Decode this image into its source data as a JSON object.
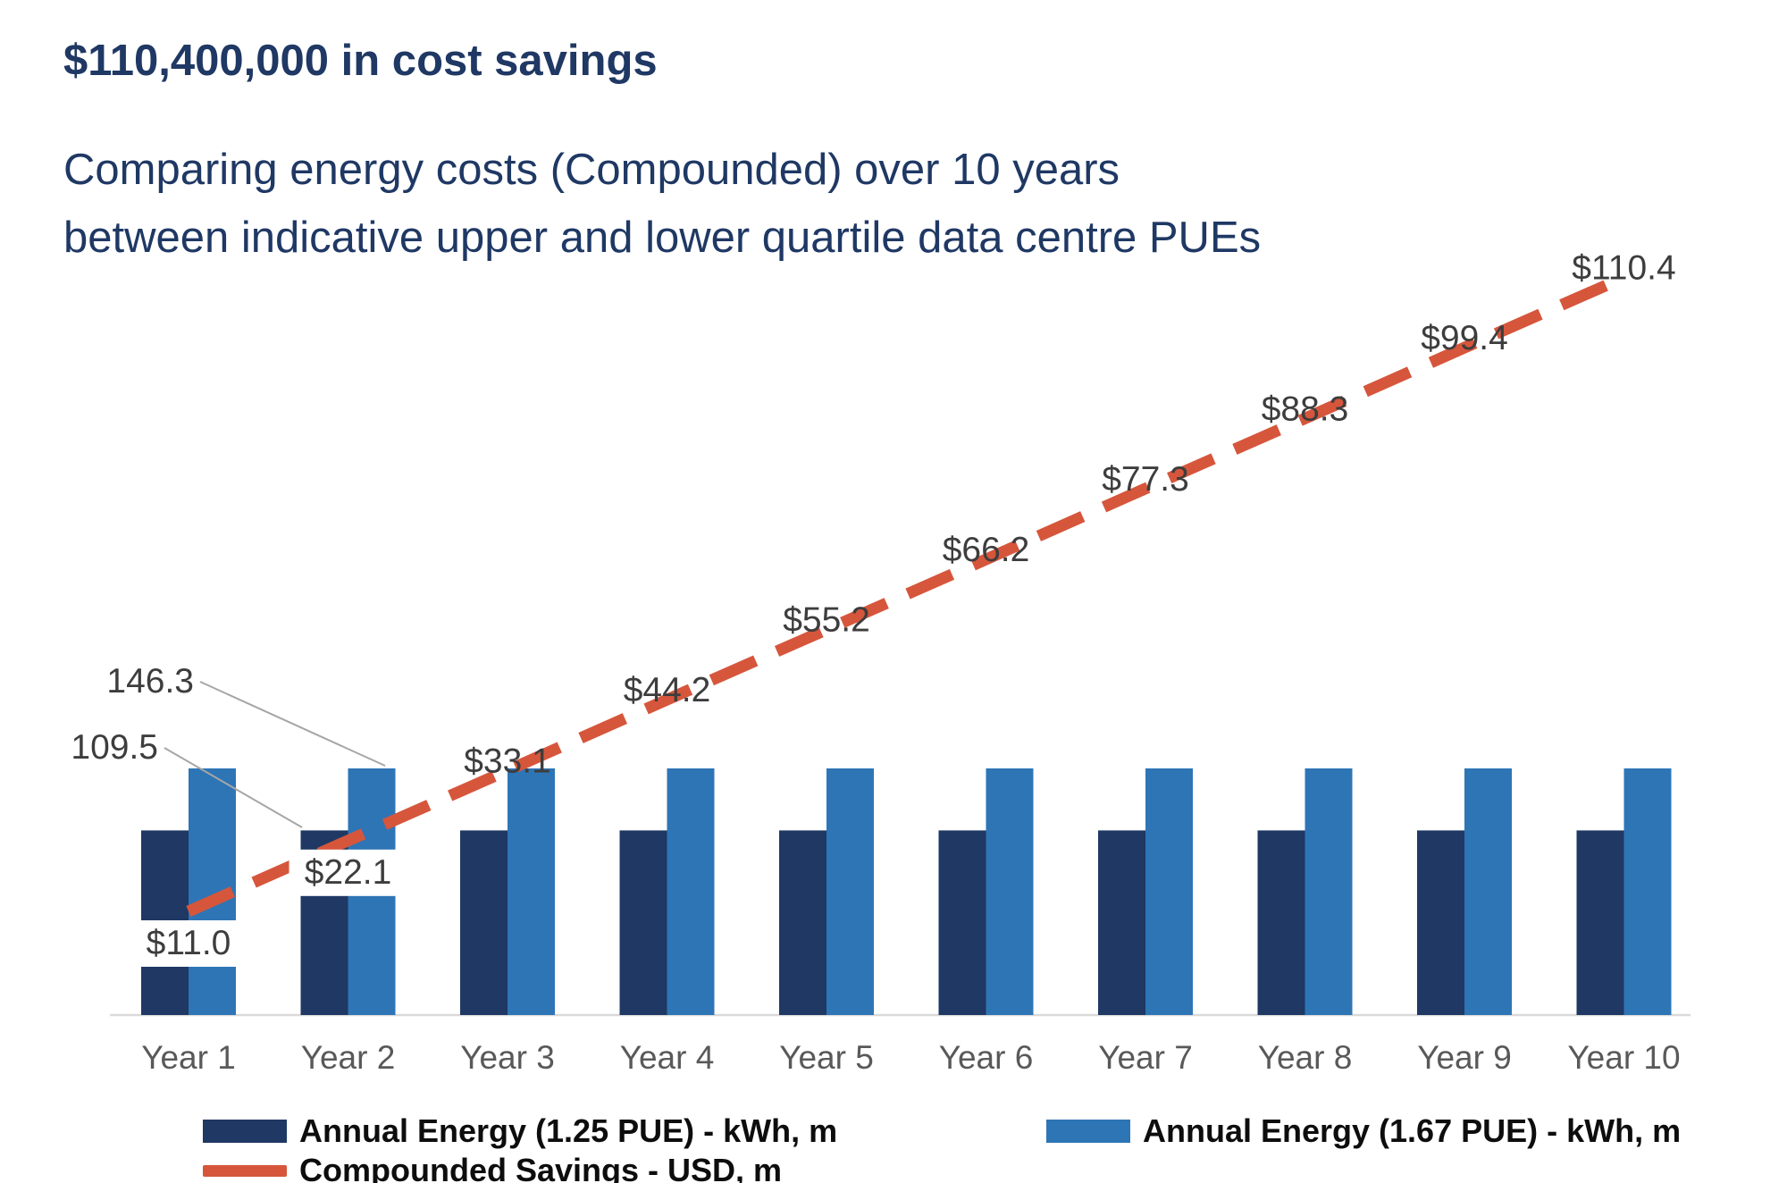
{
  "header": {
    "title": "$110,400,000 in cost savings",
    "subtitle_lines": [
      "Comparing energy costs (Compounded) over 10 years",
      "between indicative upper and lower quartile data centre PUEs"
    ]
  },
  "chart_data": {
    "type": "combo-bar-line",
    "categories": [
      "Year 1",
      "Year 2",
      "Year 3",
      "Year 4",
      "Year 5",
      "Year 6",
      "Year 7",
      "Year 8",
      "Year 9",
      "Year 10"
    ],
    "series": [
      {
        "name": "Annual Energy (1.25 PUE) - kWh, m",
        "type": "bar",
        "color": "#1f3864",
        "values": [
          109.5,
          109.5,
          109.5,
          109.5,
          109.5,
          109.5,
          109.5,
          109.5,
          109.5,
          109.5
        ]
      },
      {
        "name": "Annual Energy (1.67 PUE) - kWh, m",
        "type": "bar",
        "color": "#2e75b6",
        "values": [
          146.3,
          146.3,
          146.3,
          146.3,
          146.3,
          146.3,
          146.3,
          146.3,
          146.3,
          146.3
        ]
      },
      {
        "name": "Compounded Savings - USD, m",
        "type": "line",
        "style": "dashed",
        "color": "#d6563c",
        "values": [
          11.0,
          22.1,
          33.1,
          44.2,
          55.2,
          66.2,
          77.3,
          88.3,
          99.4,
          110.4
        ],
        "value_labels": [
          "$11.0",
          "$22.1",
          "$33.1",
          "$44.2",
          "$55.2",
          "$66.2",
          "$77.3",
          "$88.3",
          "$99.4",
          "$110.4"
        ]
      }
    ],
    "annotations": [
      {
        "text": "146.3",
        "target": "top of Year 2 bar - Annual Energy (1.67 PUE)"
      },
      {
        "text": "109.5",
        "target": "top of Year 2 bar - Annual Energy (1.25 PUE)"
      }
    ],
    "axes": {
      "x_label_color": "#595959",
      "baseline_visible": true,
      "y_axis_visible": false
    },
    "legend_position": "bottom",
    "label_color": "#3d3d3d",
    "callout_line_color": "#a6a6a6",
    "baseline_color": "#d9d9d9"
  }
}
